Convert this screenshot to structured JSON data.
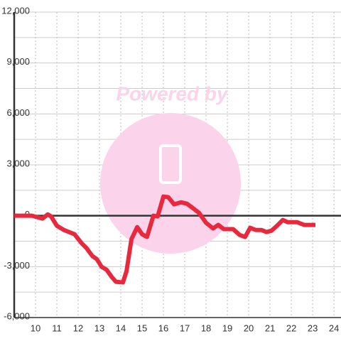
{
  "chart_data": {
    "type": "line",
    "watermark": "Powered by",
    "x": [
      9,
      9.83,
      10.33,
      10.57,
      10.73,
      11,
      11.33,
      11.83,
      12.17,
      12.4,
      12.67,
      12.87,
      13.1,
      13.33,
      13.57,
      13.77,
      14.1,
      14.27,
      14.5,
      14.77,
      15,
      15.23,
      15.53,
      15.73,
      16,
      16.23,
      16.5,
      16.83,
      17.1,
      17.33,
      17.67,
      18,
      18.33,
      18.57,
      18.83,
      19.27,
      19.57,
      19.83,
      20.07,
      20.33,
      20.6,
      20.83,
      21.07,
      21.33,
      21.6,
      21.83,
      22.27,
      22.6,
      23.13
    ],
    "series": [
      {
        "color": "#e8283c",
        "values": [
          0,
          0,
          -170,
          80,
          -40,
          -590,
          -840,
          -1090,
          -1630,
          -1920,
          -2380,
          -2550,
          -3010,
          -3180,
          -3600,
          -3890,
          -3930,
          -3260,
          -1380,
          -670,
          -1090,
          -1250,
          0,
          -40,
          1130,
          1090,
          670,
          790,
          710,
          500,
          170,
          -420,
          -750,
          -540,
          -790,
          -790,
          -1130,
          -1250,
          -710,
          -840,
          -840,
          -960,
          -880,
          -590,
          -250,
          -380,
          -380,
          -540,
          -540
        ]
      }
    ],
    "xlim": [
      9,
      24.33
    ],
    "xticks": [
      10,
      11,
      12,
      13,
      14,
      15,
      16,
      17,
      18,
      19,
      20,
      21,
      22,
      23,
      24
    ],
    "ylim": [
      -6000,
      12000
    ],
    "yticks": [
      {
        "value": -6000,
        "label": "-6,000"
      },
      {
        "value": -3000,
        "label": "-3,000"
      },
      0,
      {
        "value": 3000,
        "label": "3,000"
      },
      {
        "value": 6000,
        "label": "6,000"
      },
      {
        "value": 9000,
        "label": "9,000"
      },
      {
        "value": 12000,
        "label": "12,000"
      }
    ],
    "yminorticks": [
      -4500,
      -1500,
      1500,
      4500,
      7500,
      10500
    ],
    "grid": true
  }
}
